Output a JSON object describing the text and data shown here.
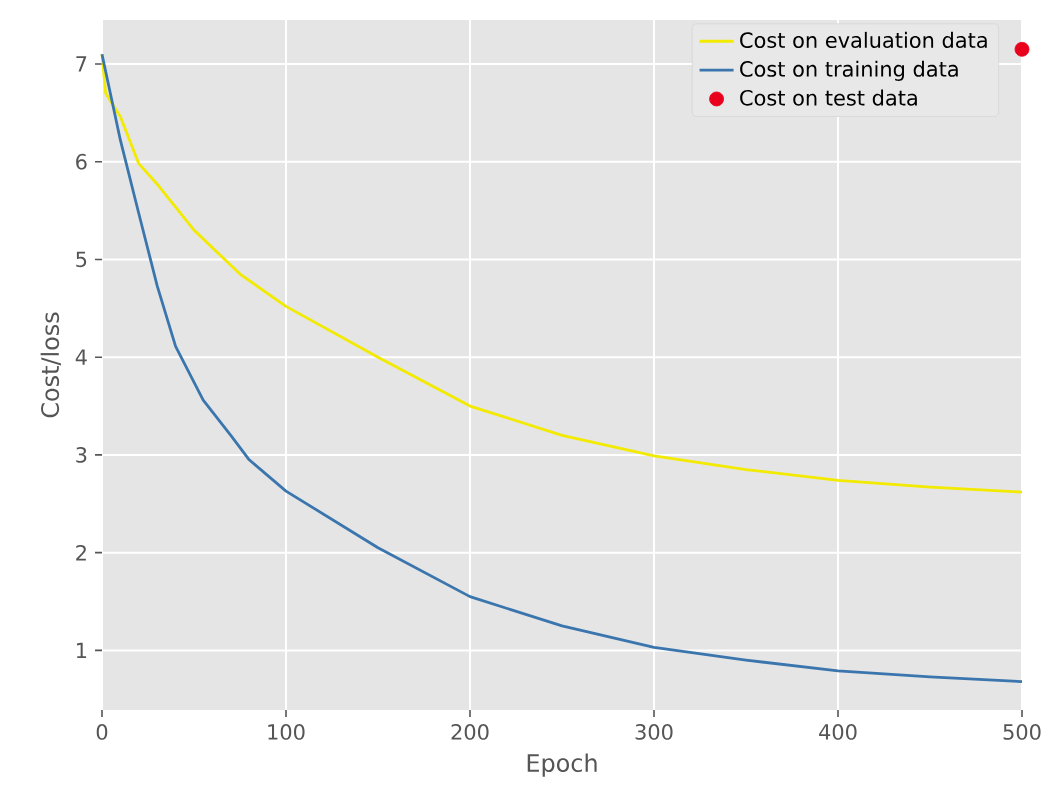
{
  "chart_data": {
    "type": "line",
    "xlabel": "Epoch",
    "ylabel": "Cost/loss",
    "xlim": [
      0,
      500
    ],
    "ylim": [
      0.39,
      7.45
    ],
    "xticks": [
      0,
      100,
      200,
      300,
      400,
      500
    ],
    "yticks": [
      1,
      2,
      3,
      4,
      5,
      6,
      7
    ],
    "grid": true,
    "legend": "top right",
    "series": [
      {
        "name": "Cost on evaluation data",
        "color": "#f2ea00",
        "x": [
          0,
          2,
          10,
          20,
          30,
          50,
          75,
          100,
          150,
          200,
          250,
          300,
          350,
          400,
          450,
          500
        ],
        "values": [
          7.1,
          6.7,
          6.46,
          5.98,
          5.77,
          5.3,
          4.85,
          4.52,
          4.0,
          3.5,
          3.2,
          2.99,
          2.85,
          2.74,
          2.67,
          2.62
        ]
      },
      {
        "name": "Cost on training data",
        "color": "#3a76ad",
        "x": [
          0,
          10,
          20,
          30,
          40,
          55,
          70,
          80,
          100,
          150,
          200,
          250,
          300,
          350,
          400,
          450,
          500
        ],
        "values": [
          7.1,
          6.22,
          5.47,
          4.73,
          4.11,
          3.56,
          3.2,
          2.95,
          2.63,
          2.05,
          1.55,
          1.25,
          1.03,
          0.9,
          0.79,
          0.73,
          0.68
        ]
      },
      {
        "name": "Cost on test data",
        "color": "#e8001c",
        "type": "scatter",
        "marker": "circle",
        "x": [
          500
        ],
        "values": [
          7.15
        ]
      }
    ]
  }
}
